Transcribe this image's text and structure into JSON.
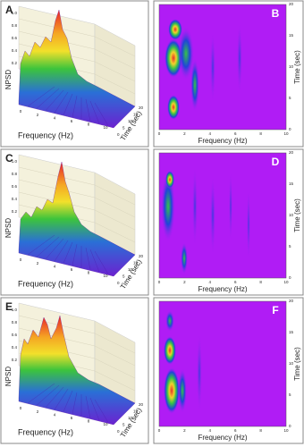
{
  "panels": [
    {
      "letter": "A",
      "kind": "surface",
      "y_label": "NPSD",
      "x_label": "Frequency (Hz)",
      "z_label": "Time (sec)",
      "y_ticks": [
        "0.2",
        "0.4",
        "0.6",
        "0.8",
        "1.0"
      ],
      "x_ticks": [
        "0",
        "2",
        "4",
        "6",
        "8",
        "10"
      ],
      "z_ticks": [
        "0",
        "5",
        "10",
        "15",
        "20"
      ]
    },
    {
      "letter": "B",
      "kind": "spectrogram",
      "y_label": "Time (sec)",
      "x_label": "Frequency (Hz)",
      "y_ticks": [
        "0",
        "5",
        "10",
        "15",
        "20"
      ],
      "x_ticks": [
        "0",
        "2",
        "4",
        "6",
        "8",
        "10"
      ]
    },
    {
      "letter": "C",
      "kind": "surface",
      "y_label": "NPSD",
      "x_label": "Frequency (Hz)",
      "z_label": "Time (sec)",
      "y_ticks": [
        "0.2",
        "0.4",
        "0.6",
        "0.8",
        "1.0"
      ],
      "x_ticks": [
        "0",
        "2",
        "4",
        "6",
        "8",
        "10"
      ],
      "z_ticks": [
        "0",
        "5",
        "10",
        "15",
        "20"
      ]
    },
    {
      "letter": "D",
      "kind": "spectrogram",
      "y_label": "Time (sec)",
      "x_label": "Frequency (Hz)",
      "y_ticks": [
        "0",
        "5",
        "10",
        "15",
        "20"
      ],
      "x_ticks": [
        "0",
        "2",
        "4",
        "6",
        "8",
        "10"
      ]
    },
    {
      "letter": "E",
      "kind": "surface",
      "y_label": "NPSD",
      "x_label": "Frequency (Hz)",
      "z_label": "Time (sec)",
      "y_ticks": [
        "0.2",
        "0.4",
        "0.6",
        "0.8",
        "1.0"
      ],
      "x_ticks": [
        "0",
        "2",
        "4",
        "6",
        "8",
        "10"
      ],
      "z_ticks": [
        "0",
        "5",
        "10",
        "15",
        "20"
      ]
    },
    {
      "letter": "F",
      "kind": "spectrogram",
      "y_label": "Time (sec)",
      "x_label": "Frequency (Hz)",
      "y_ticks": [
        "0",
        "5",
        "10",
        "15",
        "20"
      ],
      "x_ticks": [
        "0",
        "2",
        "4",
        "6",
        "8",
        "10"
      ]
    }
  ]
}
